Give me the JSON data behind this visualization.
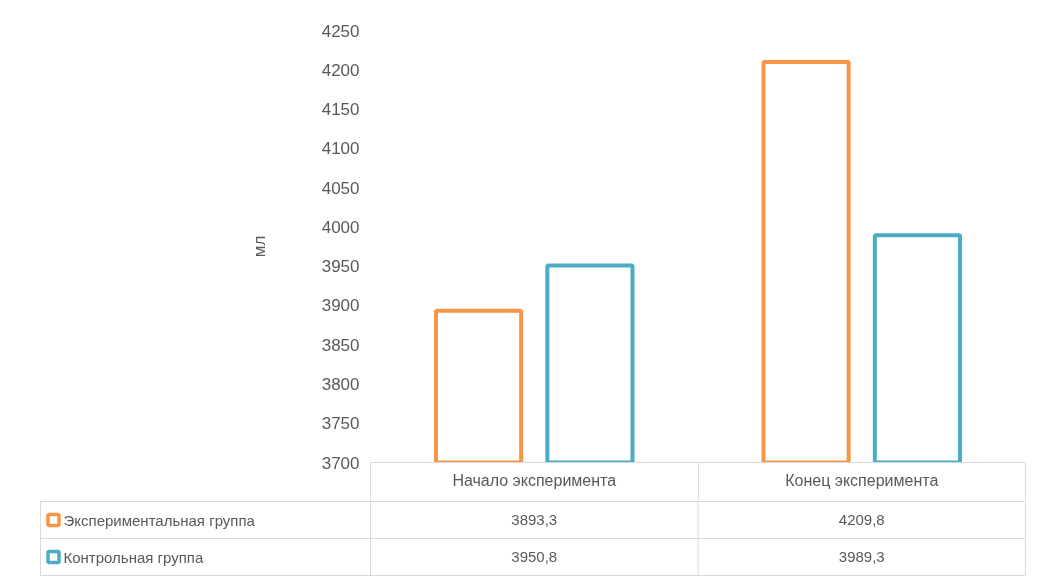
{
  "chart_data": {
    "type": "bar",
    "ylabel": "мл",
    "categories": [
      "Начало эксперимента",
      "Конец эксперимента"
    ],
    "series": [
      {
        "name": "Экспериментальная группа",
        "color": "#f79646",
        "values": [
          3893.3,
          4209.8
        ],
        "value_labels": [
          "3893,3",
          "4209,8"
        ]
      },
      {
        "name": "Контрольная группа",
        "color": "#4bacc6",
        "values": [
          3950.8,
          3989.3
        ],
        "value_labels": [
          "3950,8",
          "3989,3"
        ]
      }
    ],
    "ylim": [
      3700,
      4250
    ],
    "yticks": [
      3700,
      3750,
      3800,
      3850,
      3900,
      3950,
      4000,
      4050,
      4100,
      4150,
      4200,
      4250
    ],
    "grid": false,
    "legend": "bottom"
  }
}
